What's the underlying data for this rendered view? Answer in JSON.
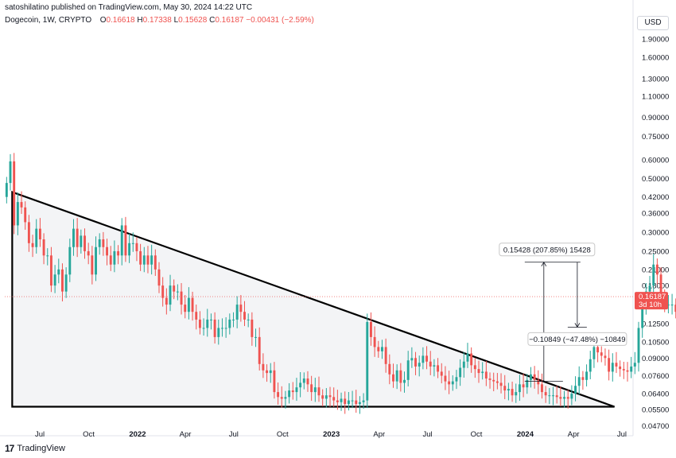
{
  "header": {
    "published": "satoshilatino published on TradingView.com, May 30, 2024 14:22 UTC"
  },
  "symbol": {
    "name": "Dogecoin, 1W, CRYPTO",
    "o_label": "O",
    "o_value": "0.16618",
    "h_label": "H",
    "h_value": "0.17338",
    "l_label": "L",
    "l_value": "0.15628",
    "c_label": "C",
    "c_value": "0.16187",
    "change": "−0.00431 (−2.59%)"
  },
  "currency_button": "USD",
  "footer": {
    "brand": "TradingView",
    "logo": "17"
  },
  "colors": {
    "up": "#26a69a",
    "down": "#ef5350",
    "triangle_fill": "#f3f4f6",
    "triangle_stroke": "#000000",
    "price_line": "#ef5350"
  },
  "chart_data": {
    "type": "candlestick",
    "scale": "log",
    "ylim": [
      0.0455,
      2.1
    ],
    "y_ticks": [
      "1.90000",
      "1.60000",
      "1.30000",
      "1.10000",
      "0.90000",
      "0.75000",
      "0.60000",
      "0.50000",
      "0.42000",
      "0.36000",
      "0.30000",
      "0.25000",
      "0.21000",
      "0.18000",
      "0.12500",
      "0.10500",
      "0.09000",
      "0.07600",
      "0.06400",
      "0.05500",
      "0.04700"
    ],
    "x_ticks": [
      {
        "label": "Jul",
        "date": "2021-07-01",
        "bold": false
      },
      {
        "label": "Oct",
        "date": "2021-10-01",
        "bold": false
      },
      {
        "label": "2022",
        "date": "2022-01-01",
        "bold": true
      },
      {
        "label": "Apr",
        "date": "2022-04-01",
        "bold": false
      },
      {
        "label": "Jul",
        "date": "2022-07-01",
        "bold": false
      },
      {
        "label": "Oct",
        "date": "2022-10-01",
        "bold": false
      },
      {
        "label": "2023",
        "date": "2023-01-01",
        "bold": true
      },
      {
        "label": "Apr",
        "date": "2023-04-01",
        "bold": false
      },
      {
        "label": "Jul",
        "date": "2023-07-01",
        "bold": false
      },
      {
        "label": "Oct",
        "date": "2023-10-01",
        "bold": false
      },
      {
        "label": "2024",
        "date": "2024-01-01",
        "bold": true
      },
      {
        "label": "Apr",
        "date": "2024-04-01",
        "bold": false
      },
      {
        "label": "Jul",
        "date": "2024-07-01",
        "bold": false
      }
    ],
    "x_range": [
      "2021-04-26",
      "2024-07-22"
    ],
    "closes": [
      0.48,
      0.59,
      0.32,
      0.4,
      0.38,
      0.33,
      0.27,
      0.26,
      0.31,
      0.28,
      0.24,
      0.24,
      0.18,
      0.2,
      0.21,
      0.17,
      0.2,
      0.26,
      0.31,
      0.26,
      0.29,
      0.25,
      0.24,
      0.2,
      0.26,
      0.28,
      0.26,
      0.24,
      0.22,
      0.25,
      0.24,
      0.32,
      0.24,
      0.27,
      0.27,
      0.25,
      0.22,
      0.24,
      0.22,
      0.24,
      0.21,
      0.18,
      0.16,
      0.15,
      0.18,
      0.17,
      0.17,
      0.15,
      0.14,
      0.16,
      0.14,
      0.13,
      0.12,
      0.12,
      0.13,
      0.13,
      0.11,
      0.12,
      0.12,
      0.12,
      0.13,
      0.13,
      0.15,
      0.14,
      0.13,
      0.13,
      0.11,
      0.11,
      0.085,
      0.08,
      0.078,
      0.08,
      0.065,
      0.062,
      0.061,
      0.062,
      0.066,
      0.065,
      0.068,
      0.071,
      0.074,
      0.07,
      0.065,
      0.068,
      0.063,
      0.061,
      0.063,
      0.062,
      0.06,
      0.059,
      0.061,
      0.058,
      0.06,
      0.06,
      0.058,
      0.059,
      0.06,
      0.127,
      0.11,
      0.1,
      0.096,
      0.1,
      0.085,
      0.077,
      0.072,
      0.08,
      0.071,
      0.073,
      0.088,
      0.09,
      0.083,
      0.086,
      0.092,
      0.087,
      0.083,
      0.084,
      0.079,
      0.076,
      0.072,
      0.07,
      0.072,
      0.075,
      0.082,
      0.087,
      0.094,
      0.084,
      0.081,
      0.078,
      0.079,
      0.074,
      0.073,
      0.072,
      0.071,
      0.069,
      0.066,
      0.067,
      0.063,
      0.065,
      0.07,
      0.068,
      0.073,
      0.077,
      0.073,
      0.07,
      0.065,
      0.063,
      0.063,
      0.063,
      0.062,
      0.061,
      0.062,
      0.061,
      0.064,
      0.069,
      0.075,
      0.073,
      0.079,
      0.089,
      0.1,
      0.095,
      0.092,
      0.09,
      0.079,
      0.086,
      0.083,
      0.081,
      0.08,
      0.079,
      0.083,
      0.086,
      0.12,
      0.145,
      0.17,
      0.18,
      0.22,
      0.2,
      0.16,
      0.15,
      0.15,
      0.15,
      0.14,
      0.14,
      0.16,
      0.16
    ],
    "triangle": {
      "apex_date": "2021-05-10",
      "apex_price": 0.44,
      "right_date": "2024-06-17",
      "right_price": 0.0565,
      "base_price": 0.0565
    },
    "measure_up": {
      "label": "0.15428 (207.85%) 15428",
      "from_date": "2024-02-05",
      "from_price": 0.072,
      "to_price": 0.225
    },
    "measure_down": {
      "label": "−0.10849 (−47.48%) −10849",
      "from_date": "2024-04-08",
      "from_price": 0.225,
      "to_price": 0.121
    },
    "last_price": {
      "value": "0.16187",
      "countdown": "3d 10h"
    }
  }
}
